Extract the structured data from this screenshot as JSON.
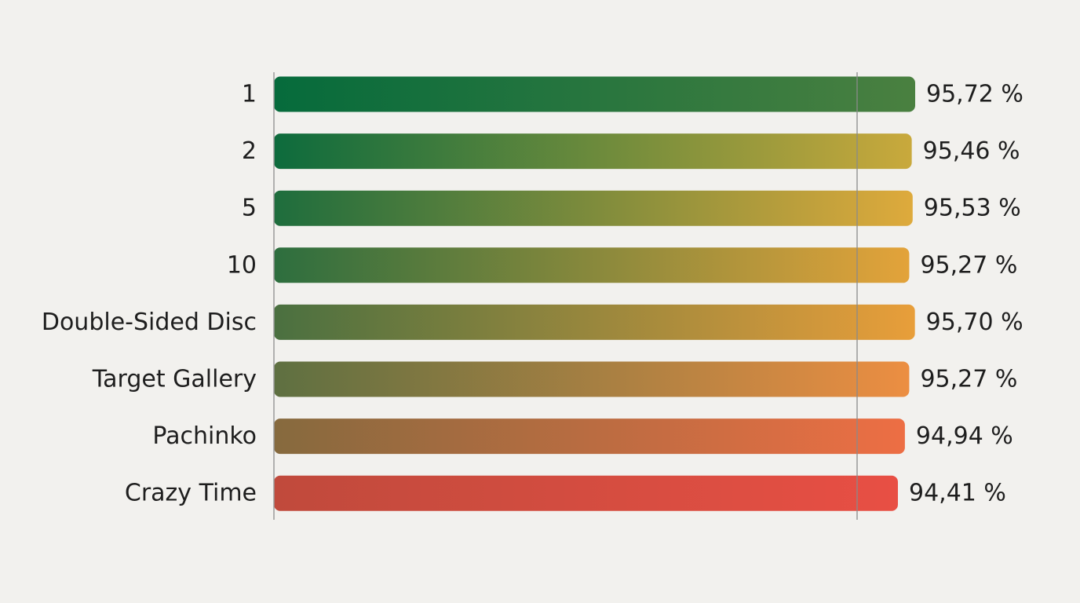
{
  "chart_data": {
    "type": "bar",
    "orientation": "horizontal",
    "categories": [
      "1",
      "2",
      "5",
      "10",
      "Double-Sided Disc",
      "Target Gallery",
      "Pachinko",
      "Crazy Time"
    ],
    "values": [
      95.72,
      95.46,
      95.53,
      95.27,
      95.7,
      95.27,
      94.94,
      94.41
    ],
    "value_labels": [
      "95,72 %",
      "95,46 %",
      "95,53 %",
      "95,27 %",
      "95,70 %",
      "95,27 %",
      "94,94 %",
      "94,41 %"
    ],
    "title": "",
    "xlabel": "",
    "ylabel": "",
    "grid": false,
    "legend": "none",
    "colors": {
      "start": [
        "#066b3c",
        "#0d6b3d",
        "#1e6d3d",
        "#2d6e3e",
        "#4a7040",
        "#5e7041",
        "#866a3e",
        "#c04a3c"
      ],
      "end": [
        "#4a8040",
        "#c9a93c",
        "#deaa3c",
        "#e3a33a",
        "#e89e3a",
        "#ec8e42",
        "#ed6e44",
        "#e84f44"
      ],
      "text": "#1e1e1e",
      "background": "#f2f1ee"
    }
  }
}
